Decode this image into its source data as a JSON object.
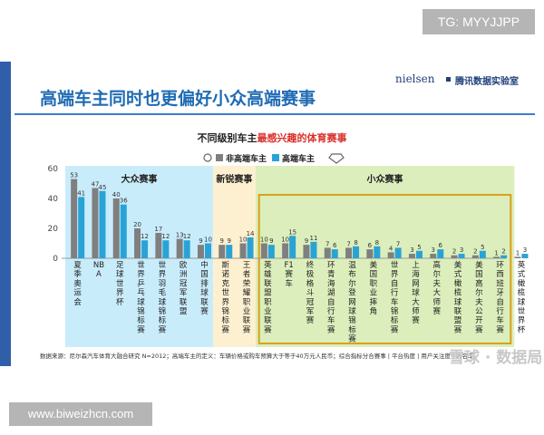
{
  "watermarks": {
    "top": "TG: MYYJJPP",
    "bottom": "www.biweizhcn.com",
    "stamp": "雪球 · 数据局"
  },
  "logo": {
    "brand1": "nielsen",
    "brand2": "腾讯数据实验室"
  },
  "headline": "高端车主同时也更偏好小众高端赛事",
  "subtitle": {
    "pre": "不同级别车主",
    "highlight": "最感兴趣的体育赛事"
  },
  "footer": "数据来源：尼尔森汽车体育大融合研究 N=2012；高端车主的定义：车辆价格或购车预算大于等于40万元人民币；综合指标分合赛事 | 平台热度 | 用户关注度 | 内容丰",
  "colors": {
    "non_premium": "#7f7f7f",
    "premium": "#29a3d6",
    "group_big": "#c9ecfb",
    "group_new": "#fdf0d0",
    "group_niche": "#dceebc",
    "niche_border": "#d9a11a"
  },
  "chart_data": {
    "type": "bar",
    "yticks": [
      0,
      20,
      40,
      60
    ],
    "ylim": [
      0,
      60
    ],
    "legend": [
      "非高端车主",
      "高端车主"
    ],
    "groups": [
      {
        "label": "大众赛事",
        "start": 0,
        "end": 6
      },
      {
        "label": "新锐赛事",
        "start": 7,
        "end": 8
      },
      {
        "label": "小众赛事",
        "start": 9,
        "end": 20
      }
    ],
    "categories": [
      "夏季奥运会",
      "NBA",
      "足球世界杯",
      "世界乒乓球锦标赛",
      "世界羽毛球锦标赛",
      "欧洲冠军联盟",
      "中国排球联赛",
      "斯诺克世界锦标赛",
      "王者荣耀职业联赛",
      "英雄联盟职业联赛",
      "F1赛车",
      "终极格斗冠军赛",
      "环青海湖自行车赛",
      "温布尔登网球锦标赛",
      "美国职业摔角",
      "世界自行车锦标赛",
      "上海网球大师赛",
      "高尔夫大师赛",
      "美式橄榄球联盟赛",
      "美国高尔夫公开赛",
      "环西班牙自行车赛",
      "英式橄榄球世界杯"
    ],
    "category_display": [
      "夏\n季\n奥\n运\n会",
      "NB\nA",
      "足\n球\n世\n界\n杯",
      "世\n界\n乒\n乓\n球\n锦\n标\n赛",
      "世\n界\n羽\n毛\n球\n锦\n标\n赛",
      "欧\n洲\n冠\n军\n联\n盟",
      "中\n国\n排\n球\n联\n赛",
      "斯\n诺\n克\n世\n界\n锦\n标\n赛",
      "王\n者\n荣\n耀\n职\n业\n联\n赛",
      "英\n雄\n联\n盟\n职\n业\n联\n赛",
      "F1\n赛\n车",
      "终\n极\n格\n斗\n冠\n军\n赛",
      "环\n青\n海\n湖\n自\n行\n车\n赛",
      "温\n布\n尔\n登\n网\n球\n锦\n标\n赛",
      "美\n国\n职\n业\n摔\n角",
      "世\n界\n自\n行\n车\n锦\n标\n赛",
      "上\n海\n网\n球\n大\n师\n赛",
      "高\n尔\n夫\n大\n师\n赛",
      "美\n式\n橄\n榄\n球\n联\n盟\n赛",
      "美\n国\n高\n尔\n夫\n公\n开\n赛",
      "环\n西\n班\n牙\n自\n行\n车\n赛",
      "英\n式\n橄\n榄\n球\n世\n界\n杯"
    ],
    "series": [
      {
        "name": "非高端车主",
        "values": [
          53,
          47,
          40,
          20,
          17,
          13,
          9,
          9,
          10,
          10,
          10,
          9,
          7,
          7,
          6,
          4,
          3,
          3,
          2,
          2,
          1,
          1
        ]
      },
      {
        "name": "高端车主",
        "values": [
          41,
          45,
          36,
          12,
          12,
          12,
          10,
          9,
          14,
          9,
          15,
          11,
          6,
          8,
          8,
          7,
          5,
          6,
          3,
          5,
          2,
          3
        ]
      }
    ]
  }
}
